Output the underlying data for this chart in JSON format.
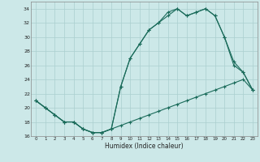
{
  "xlabel": "Humidex (Indice chaleur)",
  "background_color": "#cce8e8",
  "grid_color": "#aacfcf",
  "line_color": "#1a6b5a",
  "xlim": [
    -0.5,
    23.5
  ],
  "ylim": [
    16,
    35
  ],
  "xticks": [
    0,
    1,
    2,
    3,
    4,
    5,
    6,
    7,
    8,
    9,
    10,
    11,
    12,
    13,
    14,
    15,
    16,
    17,
    18,
    19,
    20,
    21,
    22,
    23
  ],
  "yticks": [
    16,
    18,
    20,
    22,
    24,
    26,
    28,
    30,
    32,
    34
  ],
  "series": [
    {
      "x": [
        0,
        1,
        2,
        3,
        4,
        5,
        6,
        7,
        8,
        9,
        10,
        11,
        12,
        13,
        14,
        15,
        16,
        17,
        18,
        19,
        20,
        21,
        22,
        23
      ],
      "y": [
        21,
        20,
        19,
        18,
        18,
        17,
        16.5,
        16.5,
        17,
        17.5,
        18,
        18.5,
        19,
        19.5,
        20,
        20.5,
        21,
        21.5,
        22,
        22.5,
        23,
        23.5,
        24,
        22.5
      ]
    },
    {
      "x": [
        0,
        1,
        2,
        3,
        4,
        5,
        6,
        7,
        8,
        9,
        10,
        11,
        12,
        13,
        14,
        15,
        16,
        17,
        18,
        19,
        20,
        21,
        22,
        23
      ],
      "y": [
        21,
        20,
        19,
        18,
        18,
        17,
        16.5,
        16.5,
        17,
        23,
        27,
        29,
        31,
        32,
        33,
        34,
        33,
        33.5,
        34,
        33,
        30,
        26.5,
        25,
        22.5
      ]
    },
    {
      "x": [
        0,
        1,
        2,
        3,
        4,
        5,
        6,
        7,
        8,
        9,
        10,
        11,
        12,
        13,
        14,
        15,
        16,
        17,
        18,
        19,
        20,
        21,
        22,
        23
      ],
      "y": [
        21,
        20,
        19,
        18,
        18,
        17,
        16.5,
        16.5,
        17,
        23,
        27,
        29,
        31,
        32,
        33.5,
        34,
        33,
        33.5,
        34,
        33,
        30,
        26,
        25,
        22.5
      ]
    }
  ]
}
